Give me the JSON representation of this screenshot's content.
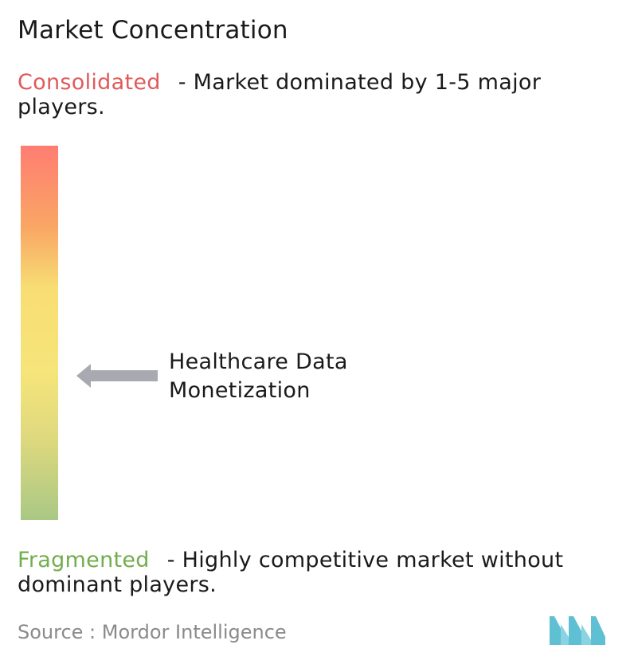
{
  "title": "Market Concentration",
  "consolidated": {
    "label": "Consolidated",
    "description": "- Market dominated by 1-5 major players.",
    "color": "#e05a5a"
  },
  "fragmented": {
    "label": "Fragmented",
    "description": "- Highly competitive market without dominant players.",
    "color": "#72ad4e"
  },
  "scale": {
    "colors": [
      "#ff7d72",
      "#f9a764",
      "#f8dd74",
      "#f6e57a",
      "#dfd97e",
      "#a9c885"
    ]
  },
  "market": {
    "label": "Healthcare Data Monetization",
    "arrow_icon": "left-arrow-icon",
    "arrow_color": "#a9a9b1"
  },
  "source": {
    "text": "Source :  Mordor Intelligence"
  },
  "logo": {
    "icon": "mordor-intelligence-logo",
    "color": "#7ecfe0"
  }
}
